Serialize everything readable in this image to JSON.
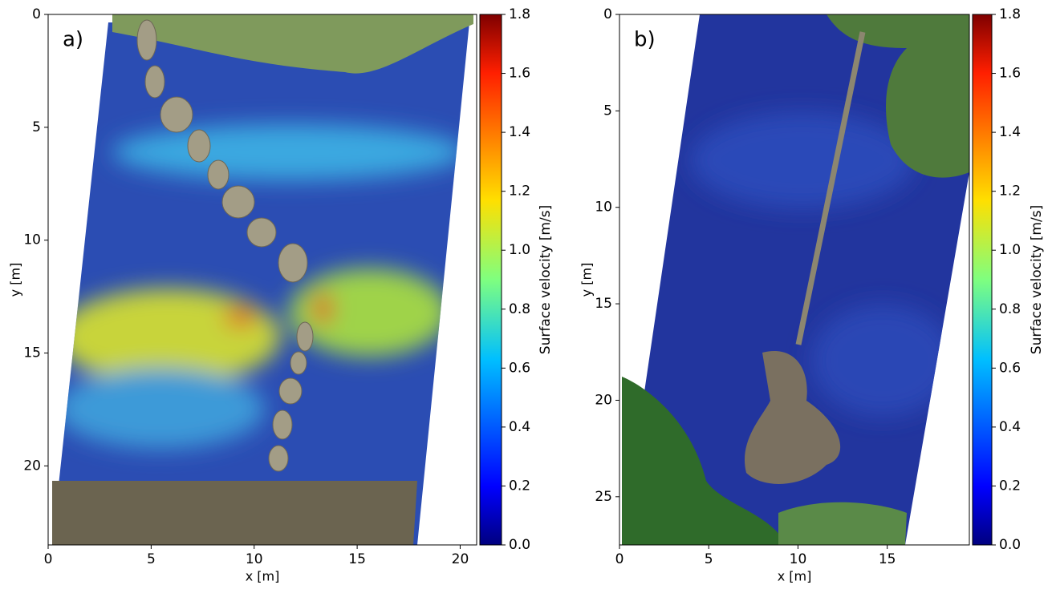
{
  "chart_data": [
    {
      "type": "heatmap",
      "title": "a)",
      "xlabel": "x [m]",
      "ylabel": "y [m]",
      "colorbar_label": "Surface velocity [m/s]",
      "colormap": "jet",
      "xlim": [
        0,
        20.8
      ],
      "ylim": [
        23.5,
        0
      ],
      "xticks": [
        0,
        5,
        10,
        15,
        20
      ],
      "yticks": [
        0,
        5,
        10,
        15,
        20
      ],
      "clim": [
        0,
        1.8
      ],
      "cticks": [
        {
          "value": 0,
          "label": "0.0"
        },
        0.2,
        0.4,
        0.6,
        0.8,
        {
          "value": 1,
          "label": "1.0"
        },
        1.2,
        1.4,
        1.6,
        1.8
      ]
    },
    {
      "type": "heatmap",
      "title": "b)",
      "xlabel": "x [m]",
      "ylabel": "y [m]",
      "colorbar_label": "Surface velocity [m/s]",
      "colormap": "jet",
      "xlim": [
        0,
        19.6
      ],
      "ylim": [
        27.5,
        0
      ],
      "xticks": [
        0,
        5,
        10,
        15
      ],
      "yticks": [
        0,
        5,
        10,
        15,
        20,
        25
      ],
      "clim": [
        0,
        1.8
      ],
      "cticks": [
        {
          "value": 0,
          "label": "0.0"
        },
        0.2,
        0.4,
        0.6,
        0.8,
        {
          "value": 1,
          "label": "1.0"
        },
        1.2,
        1.4,
        1.6,
        1.8
      ]
    }
  ]
}
